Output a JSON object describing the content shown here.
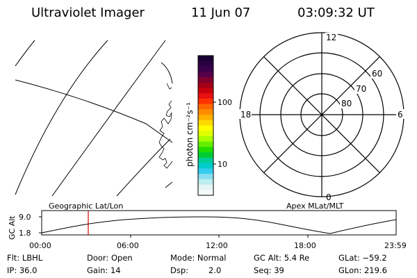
{
  "header": {
    "title": "Ultraviolet Imager",
    "date": "11 Jun 07",
    "time": "03:09:32 UT"
  },
  "colorbar": {
    "label": "photon cm⁻²s⁻¹",
    "ticks": [
      "100",
      "10"
    ],
    "colors": [
      "#1a0033",
      "#2a0040",
      "#3a004a",
      "#55004a",
      "#800030",
      "#a00018",
      "#c8000c",
      "#e81010",
      "#ff3300",
      "#ff6600",
      "#ff8c00",
      "#ffb000",
      "#ffd800",
      "#ffff00",
      "#ddff00",
      "#aaff00",
      "#66ee00",
      "#22dd00",
      "#00cc33",
      "#00cc99",
      "#00cccc",
      "#33ccee",
      "#88ddee",
      "#bbeeee",
      "#e4f4f4",
      "#f4fafa"
    ]
  },
  "polar_plot": {
    "hour_labels": {
      "top": "12",
      "left": "18",
      "right": "6",
      "bottom": "0"
    },
    "lat_labels": [
      "60",
      "70",
      "80"
    ]
  },
  "timeline": {
    "left_label": "Geographic Lat/Lon",
    "right_label": "Apex MLat/MLT",
    "y_axis_label": "GC Alt",
    "y_ticks": [
      "9.0",
      "1.8"
    ],
    "x_ticks": [
      "00:00",
      "06:00",
      "12:00",
      "18:00",
      "23:59"
    ]
  },
  "info": {
    "row1": {
      "flt": "Flt: LBHL",
      "door": "Door: Open",
      "mode": "Mode: Normal",
      "gcalt": "GC Alt: 5.4 Re",
      "glat": "GLat: −59.2"
    },
    "row2": {
      "ip": "IP: 36.0",
      "gain": "Gain: 14",
      "dsp_label": "Dsp:",
      "dsp_value": "2.0",
      "seq": "Seq: 39",
      "glon": "GLon: 219.6"
    }
  },
  "colors": {
    "marker": "#cc0000",
    "frame": "#000000"
  }
}
